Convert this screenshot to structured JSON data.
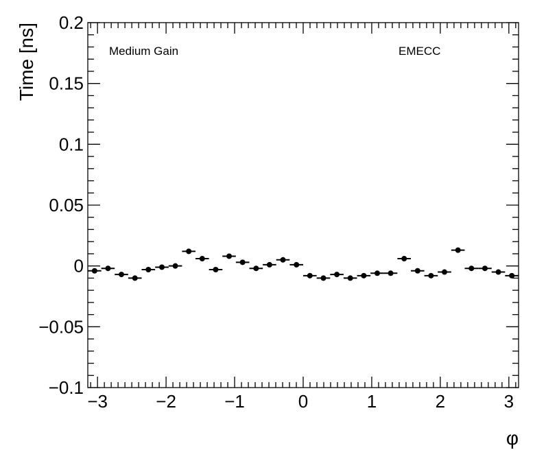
{
  "chart_data": {
    "type": "scatter",
    "title": "",
    "xlabel": "φ",
    "ylabel": "Time [ns]",
    "xlim": [
      -3.14159,
      3.14159
    ],
    "ylim": [
      -0.1,
      0.2
    ],
    "xticks": [
      -3,
      -2,
      -1,
      0,
      1,
      2,
      3
    ],
    "xtick_labels": [
      "−3",
      "−2",
      "−1",
      "0",
      "1",
      "2",
      "3"
    ],
    "yticks": [
      -0.1,
      -0.05,
      0,
      0.05,
      0.1,
      0.15,
      0.2
    ],
    "ytick_labels": [
      "−0.1",
      "−0.05",
      "0",
      "0.05",
      "0.1",
      "0.15",
      "0.2"
    ],
    "grid": false,
    "annotations": [
      "Medium Gain",
      "EMECC"
    ],
    "series": [
      {
        "name": "",
        "bin_half_width": 0.0982,
        "x": [
          -3.043,
          -2.847,
          -2.651,
          -2.454,
          -2.258,
          -2.061,
          -1.865,
          -1.669,
          -1.473,
          -1.276,
          -1.08,
          -0.884,
          -0.687,
          -0.491,
          -0.295,
          -0.098,
          0.098,
          0.295,
          0.491,
          0.687,
          0.884,
          1.08,
          1.276,
          1.473,
          1.669,
          1.865,
          2.061,
          2.258,
          2.454,
          2.651,
          2.847,
          3.043
        ],
        "y": [
          -0.004,
          -0.002,
          -0.007,
          -0.01,
          -0.003,
          -0.001,
          0.0,
          0.012,
          0.006,
          -0.003,
          0.008,
          0.003,
          -0.002,
          0.001,
          0.005,
          0.001,
          -0.008,
          -0.01,
          -0.007,
          -0.01,
          -0.008,
          -0.006,
          -0.006,
          0.006,
          -0.004,
          -0.008,
          -0.005,
          0.013,
          -0.002,
          -0.002,
          -0.005,
          -0.008
        ]
      }
    ]
  }
}
